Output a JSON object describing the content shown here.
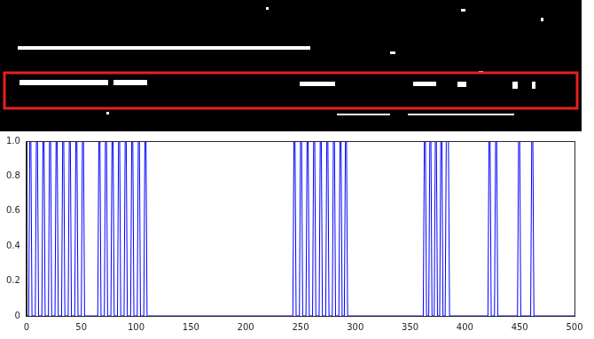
{
  "chart_data": {
    "type": "line",
    "color": "#0000ff",
    "grid": false,
    "x": [
      0,
      2,
      3,
      4,
      5,
      8,
      9,
      10,
      11,
      14,
      15,
      16,
      17,
      20,
      21,
      22,
      23,
      26,
      27,
      28,
      29,
      32,
      33,
      34,
      35,
      38,
      39,
      40,
      41,
      44,
      45,
      46,
      47,
      50,
      51,
      52,
      53,
      65,
      66,
      67,
      68,
      71,
      72,
      73,
      74,
      77,
      78,
      79,
      80,
      83,
      84,
      85,
      86,
      89,
      90,
      91,
      92,
      95,
      96,
      97,
      98,
      101,
      102,
      103,
      104,
      107,
      108,
      109,
      110,
      243,
      244,
      245,
      246,
      249,
      250,
      251,
      252,
      255,
      256,
      257,
      258,
      261,
      262,
      263,
      264,
      267,
      268,
      269,
      270,
      273,
      274,
      275,
      276,
      279,
      280,
      281,
      282,
      285,
      286,
      287,
      288,
      290,
      291,
      292,
      293,
      362,
      363,
      364,
      365,
      367,
      368,
      369,
      370,
      372,
      373,
      374,
      375,
      377,
      378,
      379,
      380,
      382,
      383,
      385,
      386,
      421,
      422,
      423,
      424,
      427,
      428,
      429,
      430,
      448,
      449,
      450,
      451,
      460,
      461,
      462,
      463,
      500
    ],
    "values": [
      0,
      0,
      1,
      1,
      0,
      0,
      1,
      1,
      0,
      0,
      1,
      1,
      0,
      0,
      1,
      1,
      0,
      0,
      1,
      1,
      0,
      0,
      1,
      1,
      0,
      0,
      1,
      1,
      0,
      0,
      1,
      1,
      0,
      0,
      1,
      1,
      0,
      0,
      1,
      1,
      0,
      0,
      1,
      1,
      0,
      0,
      1,
      1,
      0,
      0,
      1,
      1,
      0,
      0,
      1,
      1,
      0,
      0,
      1,
      1,
      0,
      0,
      1,
      1,
      0,
      0,
      1,
      1,
      0,
      0,
      1,
      1,
      0,
      0,
      1,
      1,
      0,
      0,
      1,
      1,
      0,
      0,
      1,
      1,
      0,
      0,
      1,
      1,
      0,
      0,
      1,
      1,
      0,
      0,
      1,
      1,
      0,
      0,
      1,
      1,
      0,
      0,
      1,
      1,
      0,
      0,
      1,
      1,
      0,
      0,
      1,
      1,
      0,
      0,
      1,
      1,
      0,
      0,
      1,
      1,
      0,
      0,
      1,
      1,
      0,
      0,
      1,
      1,
      0,
      0,
      1,
      1,
      0,
      0,
      1,
      1,
      0,
      0,
      1,
      1,
      0,
      0
    ],
    "xlim": [
      0,
      500
    ],
    "xticks": [
      0,
      50,
      100,
      150,
      200,
      250,
      300,
      350,
      400,
      450,
      500
    ],
    "ylim": [
      0,
      1
    ],
    "yticks": [
      0,
      0.2,
      0.4,
      0.6,
      0.8,
      1
    ]
  }
}
